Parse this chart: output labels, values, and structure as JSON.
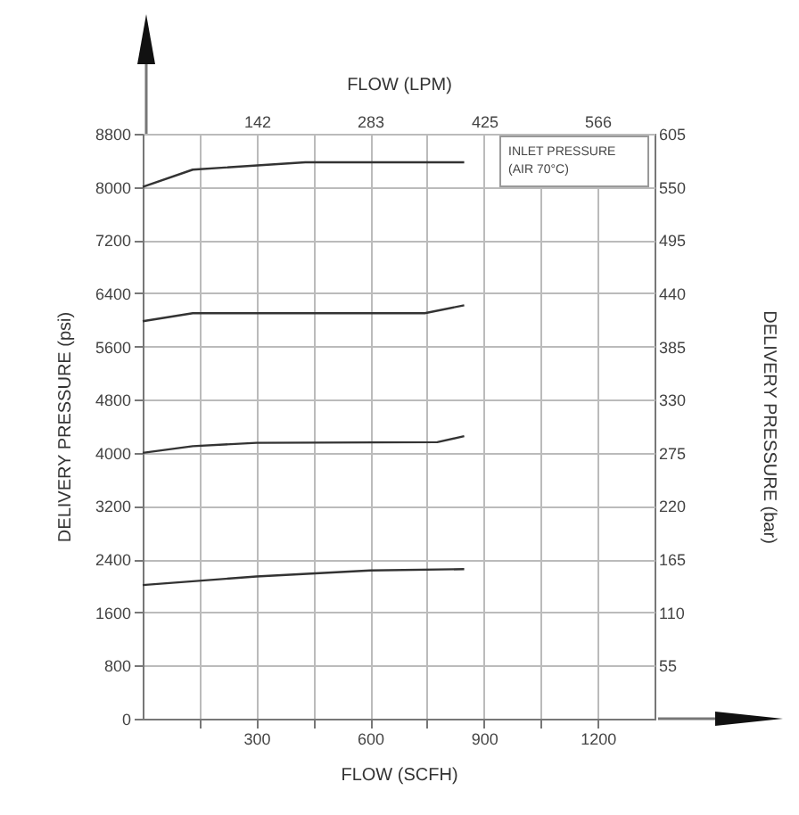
{
  "chart_data": {
    "type": "line",
    "xlabel": "FLOW (SCFH)",
    "x2label": "FLOW (LPM)",
    "ylabel": "DELIVERY PRESSURE (psi)",
    "y2label": "DELIVERY PRESSURE (bar)",
    "annotations": [
      "INLET PRESSURE",
      "(AIR 70°C)"
    ],
    "series": [
      {
        "color": "#333333",
        "x": [
          0,
          132,
          429,
          848
        ],
        "values": [
          8000,
          8260,
          8370,
          8370
        ]
      },
      {
        "color": "#333333",
        "x": [
          0,
          132,
          744,
          848
        ],
        "values": [
          5980,
          6100,
          6100,
          6220
        ]
      },
      {
        "color": "#333333",
        "x": [
          0,
          132,
          300,
          777,
          848
        ],
        "values": [
          4000,
          4100,
          4150,
          4160,
          4250
        ]
      },
      {
        "color": "#333333",
        "x": [
          0,
          300,
          600,
          848
        ],
        "values": [
          2010,
          2140,
          2230,
          2250
        ]
      }
    ],
    "xlim": [
      0,
      1350
    ],
    "xticks": [
      {
        "value": 150,
        "label": null
      },
      300,
      {
        "value": 450,
        "label": null
      },
      600,
      {
        "value": 750,
        "label": null
      },
      900,
      {
        "value": 1050,
        "label": null
      },
      1200
    ],
    "x2lim": [
      0,
      637
    ],
    "x2ticks": [
      142,
      283,
      425,
      566
    ],
    "ylim": [
      0,
      8800
    ],
    "yticks": [
      0,
      800,
      1600,
      2400,
      3200,
      4000,
      4800,
      5600,
      6400,
      7200,
      8000,
      8800
    ],
    "y2lim": [
      0,
      605
    ],
    "y2ticks": [
      55,
      110,
      165,
      220,
      275,
      330,
      385,
      440,
      495,
      550,
      605
    ],
    "grid": true,
    "line_style": "solid",
    "marker": "none"
  }
}
